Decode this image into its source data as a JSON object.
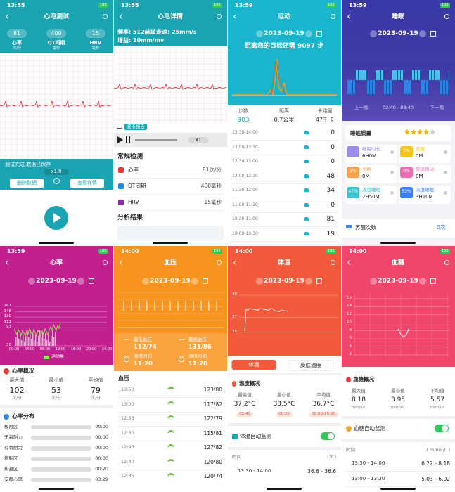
{
  "screens": [
    {
      "time": "13:55",
      "battery": "100",
      "title": "心电测试",
      "metrics": [
        {
          "value": "81",
          "label": "心率",
          "unit": "次/分"
        },
        {
          "value": "400",
          "label": "QT间期",
          "unit": "毫秒"
        },
        {
          "value": "15",
          "label": "HRV",
          "unit": "毫秒"
        }
      ],
      "status": "测试完成,数据已保存",
      "speed": "x1.0",
      "buttons": [
        "删除数据",
        "查看详情"
      ]
    },
    {
      "time": "13:55",
      "battery": "100",
      "title": "心电详情",
      "params": [
        "频率: 512赫兹",
        "走速: 25mm/s",
        "增益: 10mm/mv"
      ],
      "report": "波形报告",
      "speed": "x1",
      "section": "常规检测",
      "rows": [
        {
          "label": "心率",
          "value": "81次/分"
        },
        {
          "label": "QT间期",
          "value": "400毫秒"
        },
        {
          "label": "HRV",
          "value": "15毫秒"
        }
      ],
      "analysis": "分析结果"
    },
    {
      "time": "13:59",
      "battery": "100",
      "title": "运动",
      "date": "2023-09-19",
      "goal": "距离您的目标还需 9097 步",
      "stats": [
        {
          "label": "步数",
          "value": "903"
        },
        {
          "label": "距离",
          "value": "0.7公里"
        },
        {
          "label": "卡路里",
          "value": "47千卡"
        }
      ],
      "rows": [
        {
          "time": "13:30-14:00",
          "value": "0"
        },
        {
          "time": "13:00-13:30",
          "value": "0"
        },
        {
          "time": "12:30-13:00",
          "value": "0"
        },
        {
          "time": "12:00-12:30",
          "value": "48"
        },
        {
          "time": "11:30-12:00",
          "value": "34"
        },
        {
          "time": "11:00-11:30",
          "value": "0"
        },
        {
          "time": "10:30-11:00",
          "value": "81"
        },
        {
          "time": "10:00-10:30",
          "value": "19"
        }
      ]
    },
    {
      "time": "13:59",
      "battery": "100",
      "title": "睡眠",
      "date": "2023-09-19",
      "prev": "上一晚",
      "range": "02:40 - 08:40",
      "next": "下一晚",
      "quality": "睡眠质量",
      "cards": [
        {
          "label": "睡眠时长",
          "value": "6H0M"
        },
        {
          "label": "苏醒",
          "pct": "0%",
          "value": "0M"
        },
        {
          "label": "失眠",
          "pct": "0%",
          "value": "0M"
        },
        {
          "label": "快速眼动",
          "pct": "0%",
          "value": "0M"
        },
        {
          "label": "浅度睡眠",
          "pct": "47%",
          "value": "2H50M"
        },
        {
          "label": "深度睡眠",
          "pct": "53%",
          "value": "3H10M"
        }
      ],
      "wake_label": "苏醒次数",
      "wake_value": "0次"
    },
    {
      "time": "13:59",
      "battery": "100",
      "title": "心率",
      "date": "2023-09-19",
      "yticks": [
        "167",
        "148",
        "130",
        "111",
        "93",
        "30"
      ],
      "xticks": [
        "00:00",
        "04:00",
        "08:00",
        "12:00",
        "16:00",
        "20:00",
        "24:00"
      ],
      "legend": "运动量",
      "overview": "心率概况",
      "stats": [
        {
          "label": "最大值",
          "value": "102",
          "unit": "次/分"
        },
        {
          "label": "最小值",
          "value": "53",
          "unit": "次/分"
        },
        {
          "label": "平均值",
          "value": "79",
          "unit": "次/分"
        }
      ],
      "dist_title": "心率分布",
      "zones": [
        {
          "label": "极限区",
          "value": "00:00"
        },
        {
          "label": "无氧耐力",
          "value": "00:00"
        },
        {
          "label": "有氧耐力",
          "value": "00:00"
        },
        {
          "label": "燃脂区",
          "value": "00:00"
        },
        {
          "label": "热身区",
          "value": "00:20"
        },
        {
          "label": "安静心率",
          "value": "03:29"
        }
      ]
    },
    {
      "time": "14:00",
      "battery": "100",
      "title": "血压",
      "date": "2023-09-19",
      "low_label": "最低血压",
      "low": "112/74",
      "high_label": "最高血压",
      "high": "131/86",
      "measured_label": "测得时间",
      "low_time": "11:20",
      "high_time": "11:20",
      "list_title": "血压",
      "rows": [
        {
          "time": "13:50",
          "value": "123/80"
        },
        {
          "time": "13:00",
          "value": "117/82"
        },
        {
          "time": "12:55",
          "value": "122/79"
        },
        {
          "time": "12:50",
          "value": "115/81"
        },
        {
          "time": "12:45",
          "value": "127/82"
        },
        {
          "time": "12:40",
          "value": "120/80"
        },
        {
          "time": "12:35",
          "value": "120/74"
        }
      ]
    },
    {
      "time": "14:00",
      "battery": "100",
      "title": "体温",
      "date": "2023-09-19",
      "yticks": [
        "40",
        "37",
        "35"
      ],
      "tabs": [
        "体温",
        "皮肤温度"
      ],
      "overview": "温度概况",
      "stats": [
        {
          "label": "最高值",
          "value": "37.2°C",
          "time": "03:40"
        },
        {
          "label": "最小值",
          "value": "33.5°C",
          "time": "00:20"
        },
        {
          "label": "平均值",
          "value": "36.7°C",
          "time": "00:00-15:00"
        }
      ],
      "auto": "体温自动监测",
      "col_time": "时间",
      "col_unit": "(°C)",
      "rows": [
        {
          "time": "13:30 - 14:00",
          "value": "36.6 - 36.6"
        }
      ]
    },
    {
      "time": "14:00",
      "battery": "100",
      "title": "血糖",
      "date": "2023-09-19",
      "yticks": [
        "16",
        "14",
        "12",
        "10",
        "8",
        "6",
        "4",
        "2"
      ],
      "overview": "血糖概况",
      "stats": [
        {
          "label": "最大值",
          "value": "8.18",
          "unit": "mmol/L"
        },
        {
          "label": "最小值",
          "value": "3.95",
          "unit": "mmol/L"
        },
        {
          "label": "平均值",
          "value": "5.57",
          "unit": "mmol/L"
        }
      ],
      "auto": "血糖自动监测",
      "col_time": "时间",
      "col_unit": "( mmol/L )",
      "rows": [
        {
          "time": "13:30 - 14:00",
          "value": "6.22 - 8.18"
        },
        {
          "time": "13:00 - 13:30",
          "value": "5.03 - 6.02"
        }
      ]
    }
  ]
}
